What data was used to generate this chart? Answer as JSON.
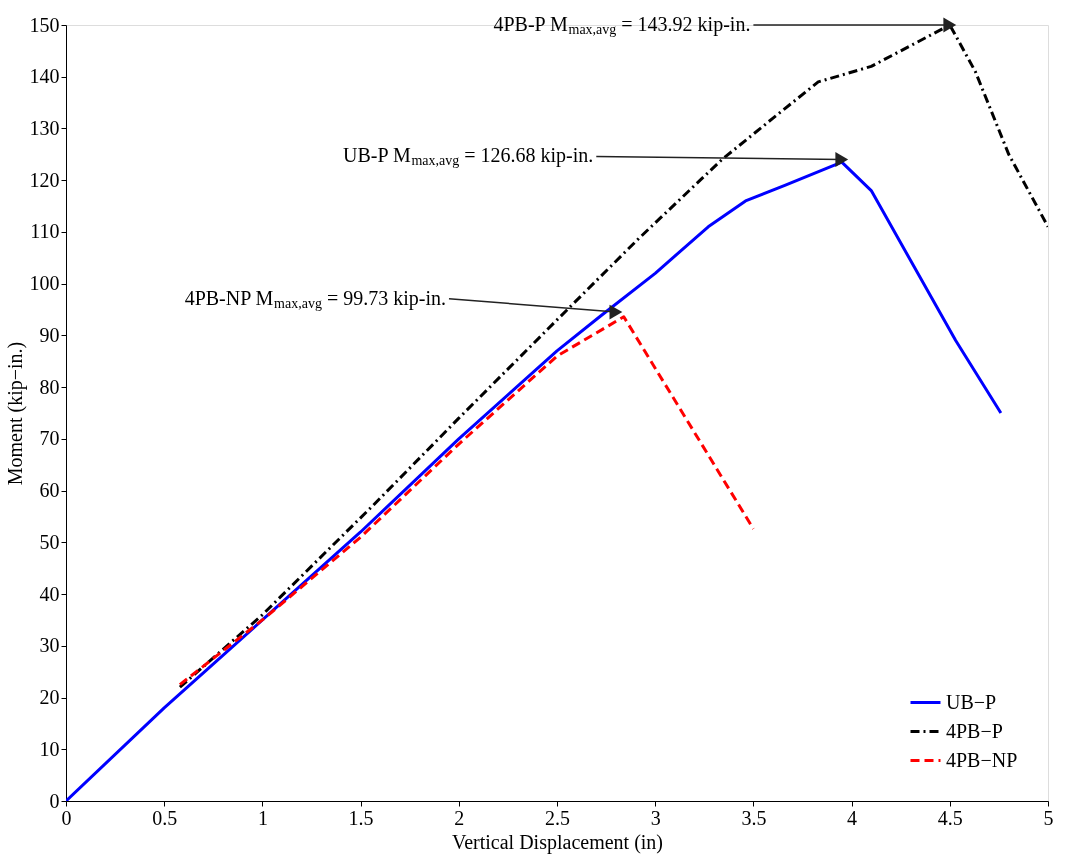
{
  "chart_data": {
    "type": "line",
    "xlabel": "Vertical Displacement (in)",
    "ylabel": "Moment (kip−in.)",
    "xlim": [
      0,
      5
    ],
    "xticks": [
      0,
      0.5,
      1,
      1.5,
      2,
      2.5,
      3,
      3.5,
      4,
      4.5,
      5
    ],
    "ylim": [
      0,
      150
    ],
    "yticks": [
      0,
      10,
      20,
      30,
      40,
      50,
      60,
      70,
      80,
      90,
      100,
      110,
      120,
      130,
      140,
      150
    ],
    "grid": false,
    "legend": "bottom right",
    "marker": "none",
    "series": [
      {
        "name": "UB−P",
        "color": "#0000ff",
        "line_style": "solid",
        "x": [
          0,
          0.5,
          1,
          1.5,
          2,
          2.5,
          2.73,
          3,
          3.27,
          3.46,
          3.66,
          3.95,
          4.1,
          4.53,
          4.76
        ],
        "values": [
          0,
          18,
          35,
          52,
          70,
          87,
          94,
          102,
          111,
          116,
          119,
          123.5,
          118,
          89,
          75
        ]
      },
      {
        "name": "4PB−P",
        "color": "#000000",
        "line_style": "dashdot",
        "x": [
          0.58,
          1,
          1.56,
          2,
          2.5,
          2.91,
          3.34,
          3.6,
          3.83,
          4.1,
          4.3,
          4.5,
          4.63,
          4.8,
          5
        ],
        "values": [
          22,
          36,
          57,
          74,
          93,
          108.5,
          124,
          132,
          139,
          142,
          146,
          150,
          141,
          125,
          111
        ]
      },
      {
        "name": "4PB−NP",
        "color": "#ff0000",
        "line_style": "dashed",
        "x": [
          0.58,
          1,
          1.5,
          2,
          2.5,
          2.84,
          3.5
        ],
        "values": [
          22.5,
          35,
          51,
          69,
          86,
          93.6,
          52.6
        ]
      }
    ],
    "annotations": [
      {
        "text": "4PB-P M$_{max,avg}$ = 143.92 kip-in.",
        "x": 4.5,
        "y": 150
      },
      {
        "text": "UB-P M$_{max,avg}$ = 126.68 kip-in.",
        "x": 3.95,
        "y": 124
      },
      {
        "text": "4PB-NP M$_{max,avg}$ = 99.73 kip-in.",
        "x": 2.8,
        "y": 94.5
      }
    ]
  }
}
